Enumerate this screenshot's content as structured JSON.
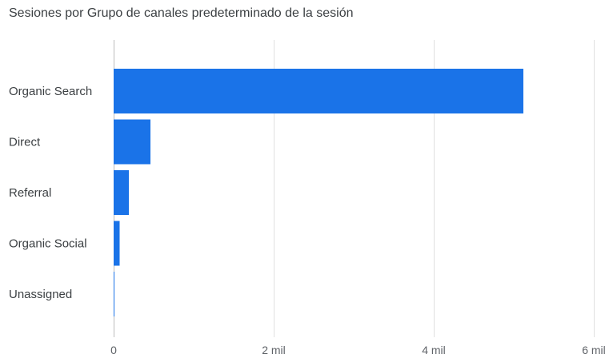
{
  "chart_data": {
    "type": "bar",
    "orientation": "horizontal",
    "title": "Sesiones por Grupo de canales predeterminado de la sesión",
    "xlabel": "",
    "ylabel": "",
    "categories": [
      "Organic Search",
      "Direct",
      "Referral",
      "Organic Social",
      "Unassigned"
    ],
    "values": [
      5120,
      460,
      190,
      75,
      8
    ],
    "xlim": [
      0,
      6000
    ],
    "x_ticks": [
      0,
      2000,
      4000,
      6000
    ],
    "x_tick_labels": [
      "0",
      "2 mil",
      "4 mil",
      "6 mil"
    ],
    "grid": true,
    "bar_color": "#1a73e8",
    "grid_color": "#e0e0e0"
  }
}
